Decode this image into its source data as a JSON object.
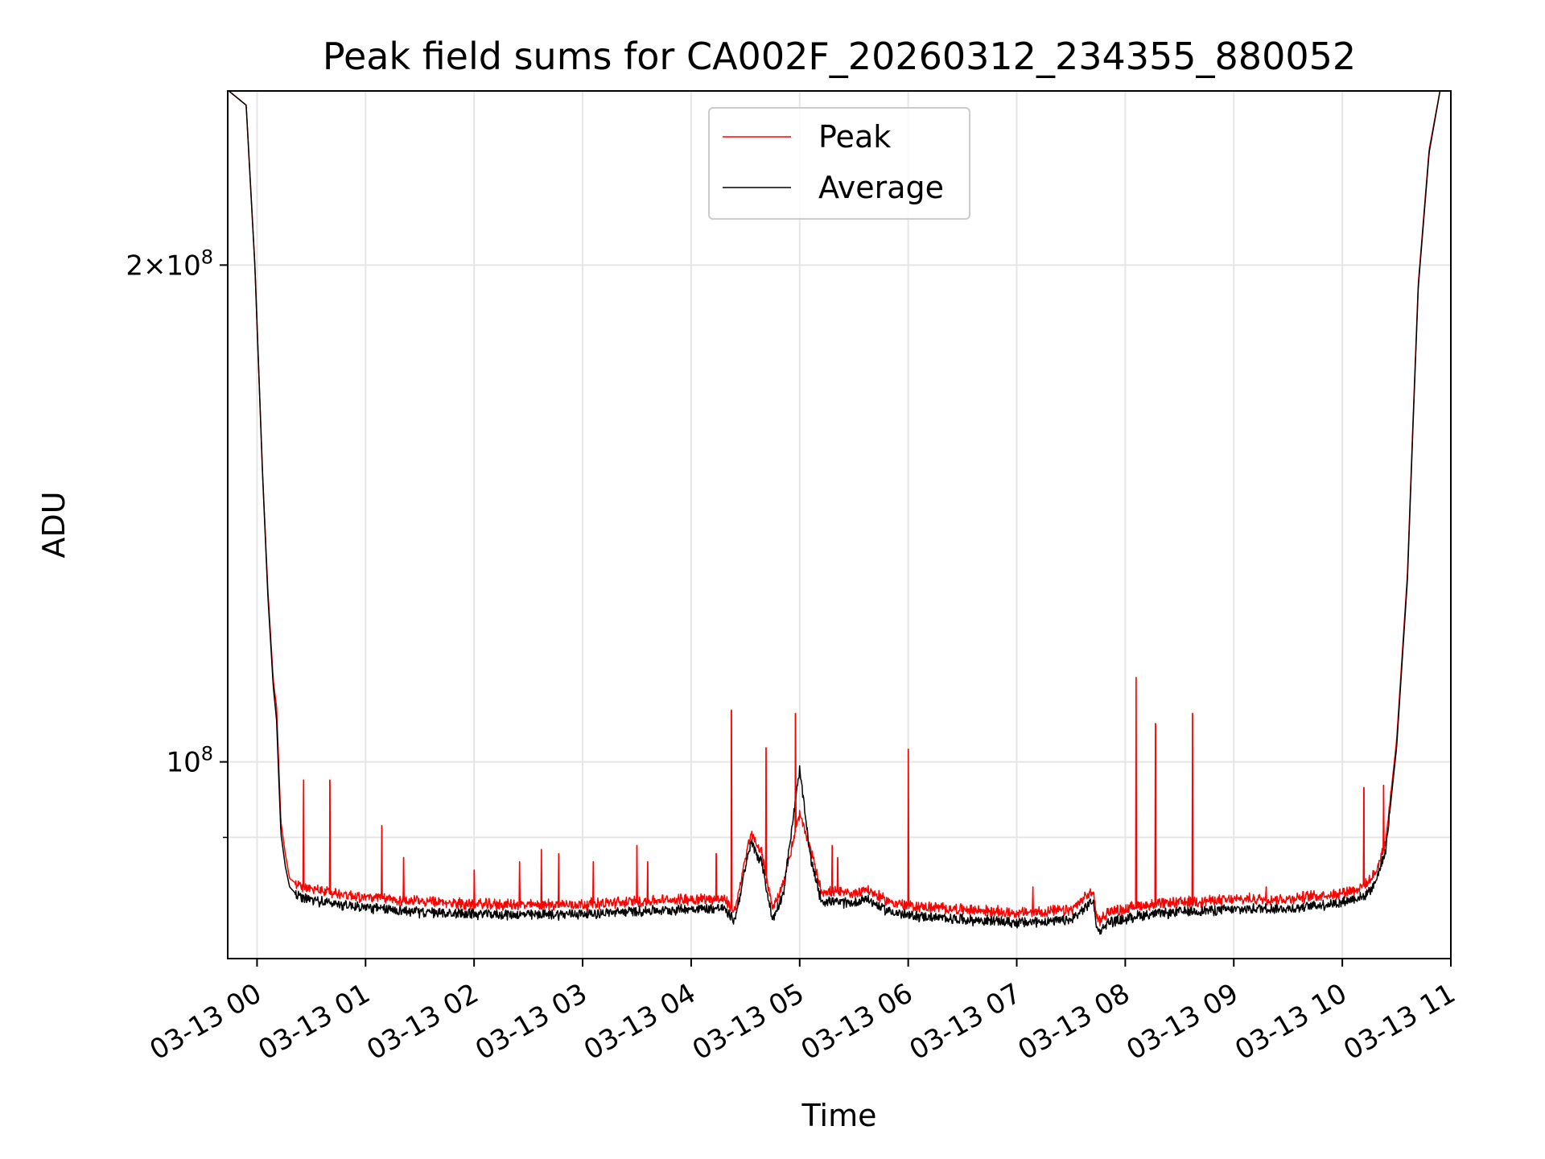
{
  "chart_data": {
    "type": "line",
    "title": "Peak field sums for CA002F_20260312_234355_880052",
    "xlabel": "Time",
    "ylabel": "ADU",
    "yscale": "log",
    "ylim": [
      76000000,
      255000000
    ],
    "xlim": [
      -0.27,
      11.0
    ],
    "x_unit": "hours after 2026-03-13 00:00",
    "x_ticks": [
      0,
      1,
      2,
      3,
      4,
      5,
      6,
      7,
      8,
      9,
      10,
      11
    ],
    "x_tick_labels": [
      "03-13 00",
      "03-13 01",
      "03-13 02",
      "03-13 03",
      "03-13 04",
      "03-13 05",
      "03-13 06",
      "03-13 07",
      "03-13 08",
      "03-13 09",
      "03-13 10",
      "03-13 11"
    ],
    "y_ticks_major": [
      100000000,
      200000000
    ],
    "y_tick_labels": [
      {
        "base": "10",
        "exp": "8"
      },
      {
        "mant": "2",
        "base": "10",
        "exp": "8"
      }
    ],
    "y_ticks_minor": [
      90000000
    ],
    "grid": true,
    "legend_position": "upper center",
    "series": [
      {
        "name": "Peak",
        "color": "#ff0000",
        "x": [
          -0.26,
          -0.1,
          -0.02,
          0.05,
          0.1,
          0.15,
          0.18,
          0.22,
          0.26,
          0.3,
          0.35,
          0.4,
          0.5,
          0.7,
          1.0,
          1.5,
          2.0,
          2.5,
          3.0,
          3.5,
          4.0,
          4.3,
          4.4,
          4.55,
          4.65,
          4.75,
          4.85,
          5.0,
          5.1,
          5.2,
          5.3,
          5.5,
          5.6,
          5.8,
          6.0,
          6.5,
          7.0,
          7.5,
          7.7,
          7.75,
          7.85,
          8.0,
          8.1,
          8.5,
          8.8,
          9.0,
          9.2,
          9.5,
          9.7,
          9.95,
          10.2,
          10.3,
          10.4,
          10.5,
          10.6,
          10.65,
          10.7,
          10.8,
          10.9,
          10.98
        ],
        "values": [
          255000000,
          250000000,
          200000000,
          150000000,
          127000000,
          112000000,
          108000000,
          92000000,
          88000000,
          85000000,
          84500000,
          84000000,
          83800000,
          83300000,
          82800000,
          82300000,
          82000000,
          81900000,
          82000000,
          82300000,
          82600000,
          82600000,
          81200000,
          90500000,
          88000000,
          81500000,
          84500000,
          93000000,
          88500000,
          83500000,
          83400000,
          83200000,
          83800000,
          82400000,
          81800000,
          81400000,
          81000000,
          81300000,
          83500000,
          80000000,
          81200000,
          81400000,
          81800000,
          82200000,
          82400000,
          82500000,
          82600000,
          82600000,
          82900000,
          83200000,
          84000000,
          85500000,
          89500000,
          103000000,
          130000000,
          160000000,
          195000000,
          235000000,
          255000000,
          255000000
        ],
        "spikes": [
          {
            "x": 0.43,
            "value": 97500000
          },
          {
            "x": 0.67,
            "value": 97500000
          },
          {
            "x": 1.15,
            "value": 91500000
          },
          {
            "x": 1.35,
            "value": 87500000
          },
          {
            "x": 2.0,
            "value": 86000000
          },
          {
            "x": 2.42,
            "value": 87000000
          },
          {
            "x": 2.62,
            "value": 88500000
          },
          {
            "x": 2.78,
            "value": 88000000
          },
          {
            "x": 3.1,
            "value": 87000000
          },
          {
            "x": 3.5,
            "value": 89000000
          },
          {
            "x": 3.6,
            "value": 87000000
          },
          {
            "x": 4.23,
            "value": 88000000
          },
          {
            "x": 4.37,
            "value": 107500000
          },
          {
            "x": 4.69,
            "value": 102000000
          },
          {
            "x": 4.96,
            "value": 107000000
          },
          {
            "x": 5.3,
            "value": 89000000
          },
          {
            "x": 5.35,
            "value": 87500000
          },
          {
            "x": 6.0,
            "value": 101800000
          },
          {
            "x": 7.15,
            "value": 84000000
          },
          {
            "x": 8.1,
            "value": 112500000
          },
          {
            "x": 8.28,
            "value": 105500000
          },
          {
            "x": 8.62,
            "value": 107000000
          },
          {
            "x": 9.3,
            "value": 84000000
          },
          {
            "x": 10.2,
            "value": 96500000
          },
          {
            "x": 10.38,
            "value": 96800000
          }
        ]
      },
      {
        "name": "Average",
        "color": "#000000",
        "x": [
          -0.26,
          -0.1,
          -0.02,
          0.05,
          0.1,
          0.15,
          0.18,
          0.22,
          0.26,
          0.3,
          0.35,
          0.4,
          0.5,
          0.7,
          1.0,
          1.5,
          2.0,
          2.5,
          3.0,
          3.5,
          4.0,
          4.3,
          4.4,
          4.55,
          4.65,
          4.75,
          4.85,
          5.0,
          5.1,
          5.2,
          5.3,
          5.5,
          5.6,
          5.8,
          6.0,
          6.5,
          7.0,
          7.5,
          7.7,
          7.75,
          7.85,
          8.0,
          8.1,
          8.5,
          8.8,
          9.0,
          9.2,
          9.5,
          9.7,
          9.95,
          10.2,
          10.3,
          10.4,
          10.5,
          10.6,
          10.65,
          10.7,
          10.8,
          10.9,
          10.98
        ],
        "values": [
          255000000,
          250000000,
          200000000,
          150000000,
          126000000,
          111000000,
          106000000,
          90500000,
          86500000,
          84000000,
          83300000,
          82800000,
          82600000,
          82200000,
          81700000,
          81200000,
          81000000,
          80900000,
          81000000,
          81300000,
          81600000,
          81600000,
          80200000,
          89500000,
          87000000,
          80300000,
          83500000,
          99000000,
          87500000,
          82500000,
          82400000,
          82200000,
          82800000,
          81400000,
          80800000,
          80400000,
          80000000,
          80300000,
          82500000,
          79000000,
          80100000,
          80400000,
          80800000,
          81200000,
          81400000,
          81500000,
          81600000,
          81600000,
          81900000,
          82200000,
          83000000,
          84500000,
          88500000,
          102000000,
          129000000,
          159000000,
          194000000,
          234000000,
          255000000,
          255000000
        ]
      }
    ]
  }
}
